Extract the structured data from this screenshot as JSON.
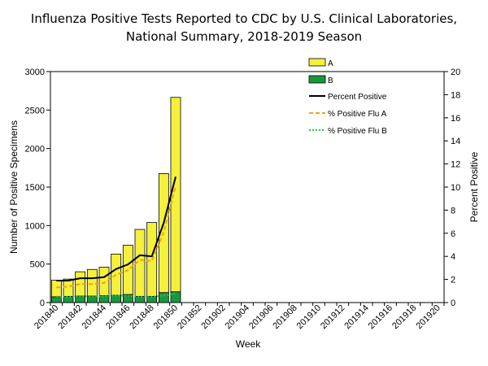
{
  "chart_data": {
    "type": "bar",
    "title_line1": "Influenza Positive Tests Reported to CDC by U.S. Clinical Laboratories,",
    "title_line2": "National Summary,  2018-2019 Season",
    "xlabel": "Week",
    "ylabel_left": "Number of Positive Specimens",
    "ylabel_right": "Percent Positive",
    "ylim_left": [
      0,
      3000
    ],
    "ylim_right": [
      0,
      20
    ],
    "yticks_left": [
      "0",
      "500",
      "1000",
      "1500",
      "2000",
      "2500",
      "3000"
    ],
    "yticks_right": [
      "0",
      "2",
      "4",
      "6",
      "8",
      "10",
      "12",
      "14",
      "16",
      "18",
      "20"
    ],
    "weeks": [
      "201840",
      "201841",
      "201842",
      "201843",
      "201844",
      "201845",
      "201846",
      "201847",
      "201848",
      "201849",
      "201850",
      "201851",
      "201852",
      "201901",
      "201902",
      "201903",
      "201904",
      "201905",
      "201906",
      "201907",
      "201908",
      "201909",
      "201910",
      "201911",
      "201912",
      "201913",
      "201914",
      "201915",
      "201916",
      "201917",
      "201918",
      "201919",
      "201920"
    ],
    "tick_labels": [
      "201840",
      "201842",
      "201844",
      "201846",
      "201848",
      "201850",
      "201852",
      "201902",
      "201904",
      "201906",
      "201908",
      "201910",
      "201912",
      "201914",
      "201916",
      "201918",
      "201920"
    ],
    "series": [
      {
        "name": "A",
        "color": "#f5f03a",
        "values": [
          215,
          225,
          315,
          345,
          370,
          535,
          640,
          870,
          960,
          1545,
          2525
        ]
      },
      {
        "name": "B",
        "color": "#1a9641",
        "values": [
          75,
          80,
          85,
          85,
          90,
          95,
          105,
          80,
          80,
          130,
          140
        ]
      }
    ],
    "lines": [
      {
        "name": "Percent Positive",
        "color": "#000000",
        "style": "solid",
        "values": [
          1.9,
          1.9,
          2.1,
          2.1,
          2.2,
          2.9,
          3.3,
          4.1,
          4.0,
          6.9,
          10.9
        ]
      },
      {
        "name": "% Positive Flu A",
        "color": "#e6a817",
        "style": "dashed",
        "values": [
          1.3,
          1.4,
          1.6,
          1.6,
          1.7,
          2.4,
          2.8,
          3.7,
          3.6,
          6.1,
          10.1
        ]
      },
      {
        "name": "% Positive Flu B",
        "color": "#2ec43a",
        "style": "dotted",
        "values": [
          0.5,
          0.5,
          0.55,
          0.55,
          0.55,
          0.6,
          0.6,
          0.5,
          0.5,
          0.6,
          0.8
        ]
      }
    ],
    "legend_position": "top-right"
  }
}
